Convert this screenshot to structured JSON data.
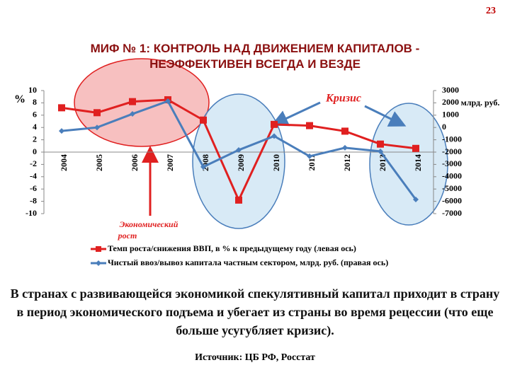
{
  "slide_number": "23",
  "chart_data": {
    "type": "line",
    "title": "МИФ № 1: КОНТРОЛЬ НАД ДВИЖЕНИЕМ КАПИТАЛОВ - НЕЭФФЕКТИВЕН ВСЕГДА И ВЕЗДЕ",
    "y_label": "%",
    "y2_label": "млрд. руб.",
    "categories": [
      "2004",
      "2005",
      "2006",
      "2007",
      "2008",
      "2009",
      "2010",
      "2011",
      "2012",
      "2013",
      "2014"
    ],
    "series": [
      {
        "name": "Темп роста/снижения ВВП, в % к предыдущему году (левая ось)",
        "color": "#e02020",
        "marker": "square",
        "values": [
          7.2,
          6.4,
          8.2,
          8.5,
          5.2,
          -7.8,
          4.5,
          4.3,
          3.4,
          1.3,
          0.6
        ]
      },
      {
        "name": "Чистый ввоз/вывоз капитала частным сектором, млрд. руб. (правая ось)",
        "color": "#4a7ebb",
        "marker": "diamond",
        "axis": "y2",
        "values": [
          -280,
          0,
          1100,
          2140,
          -3200,
          -1830,
          -700,
          -2340,
          -1650,
          -1940,
          -5850
        ]
      }
    ],
    "ylim": [
      -10,
      10
    ],
    "yticks": [
      -10,
      -8,
      -6,
      -4,
      -2,
      0,
      2,
      4,
      6,
      8,
      10
    ],
    "y2lim": [
      -7000,
      3000
    ],
    "y2ticks": [
      -7000,
      -6000,
      -5000,
      -4000,
      -3000,
      -2000,
      -1000,
      0,
      1000,
      2000,
      3000
    ],
    "grid": false,
    "legend": "bottom",
    "annotations": [
      "Кризис",
      "Экономический рост"
    ]
  },
  "body_text": "В странах с развивающейся экономикой спекулятивный капитал приходит в страну в период экономического подъема и убегает из страны во время рецессии (что еще больше усугубляет кризис).",
  "source": "Источник: ЦБ РФ, Росстат"
}
